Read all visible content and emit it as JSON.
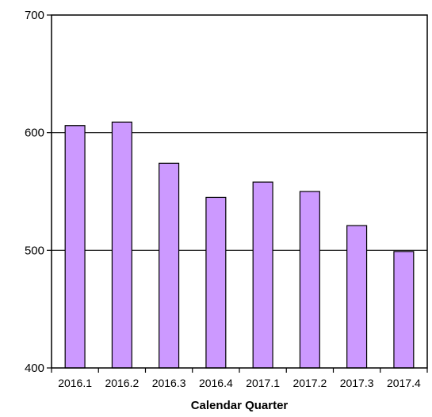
{
  "chart_data": {
    "type": "bar",
    "title": "",
    "xlabel": "Calendar Quarter",
    "ylabel": "",
    "categories": [
      "2016.1",
      "2016.2",
      "2016.3",
      "2016.4",
      "2017.1",
      "2017.2",
      "2017.3",
      "2017.4"
    ],
    "values": [
      606,
      609,
      574,
      545,
      558,
      550,
      521,
      499
    ],
    "ylim": [
      400,
      700
    ],
    "yticks": [
      400,
      500,
      600,
      700
    ],
    "grid": "horizontal",
    "legend": "none",
    "bar_color": "#cc99ff",
    "bar_edge_color": "#000000"
  }
}
